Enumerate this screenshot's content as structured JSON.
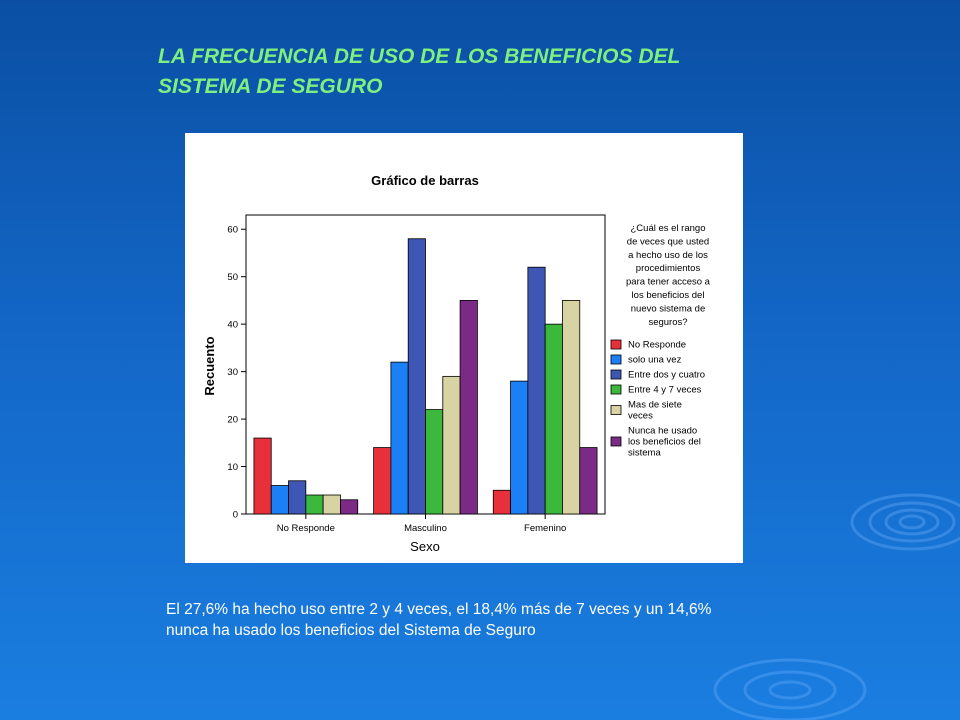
{
  "slide": {
    "title": "LA FRECUENCIA DE USO DE LOS BENEFICIOS DEL\nSISTEMA  DE SEGURO",
    "caption": "El 27,6% ha hecho uso entre 2 y 4 veces, el 18,4% más de 7 veces y un 14,6%\nnunca ha usado los beneficios del Sistema de Seguro",
    "title_color": "#7ff07f",
    "background_top": "#0a4fa3",
    "background_bottom": "#1a7ee0"
  },
  "chart_data": {
    "type": "bar",
    "title": "Gráfico de barras",
    "xlabel": "Sexo",
    "ylabel": "Recuento",
    "ylim": [
      0,
      63
    ],
    "yticks": [
      0,
      10,
      20,
      30,
      40,
      50,
      60
    ],
    "grid": false,
    "legend_position": "right",
    "legend_title": [
      "¿Cuál es el rango",
      "de veces que usted",
      "a hecho uso de los",
      "procedimientos",
      "para tener acceso a",
      "los beneficios del",
      "nuevo sistema de",
      "seguros?"
    ],
    "categories": [
      "No Responde",
      "Masculino",
      "Femenino"
    ],
    "series": [
      {
        "name": "No Responde",
        "label_lines": [
          "No Responde"
        ],
        "color": "#e8303a",
        "values": [
          16,
          14,
          5
        ]
      },
      {
        "name": "solo una vez",
        "label_lines": [
          "solo una vez"
        ],
        "color": "#1b7ff5",
        "values": [
          6,
          32,
          28
        ]
      },
      {
        "name": "Entre dos y cuatro",
        "label_lines": [
          "Entre dos y cuatro"
        ],
        "color": "#3e56b4",
        "values": [
          7,
          58,
          52
        ]
      },
      {
        "name": "Entre 4 y 7 veces",
        "label_lines": [
          "Entre 4 y 7 veces"
        ],
        "color": "#3cb83c",
        "values": [
          4,
          22,
          40
        ]
      },
      {
        "name": "Mas de siete veces",
        "label_lines": [
          "Mas de siete",
          "veces"
        ],
        "color": "#d8d3a2",
        "values": [
          4,
          29,
          45
        ]
      },
      {
        "name": "Nunca he usado los beneficios del sistema",
        "label_lines": [
          "Nunca he usado",
          "los beneficios del",
          "sistema"
        ],
        "color": "#7b2b86",
        "values": [
          3,
          45,
          14
        ]
      }
    ]
  }
}
